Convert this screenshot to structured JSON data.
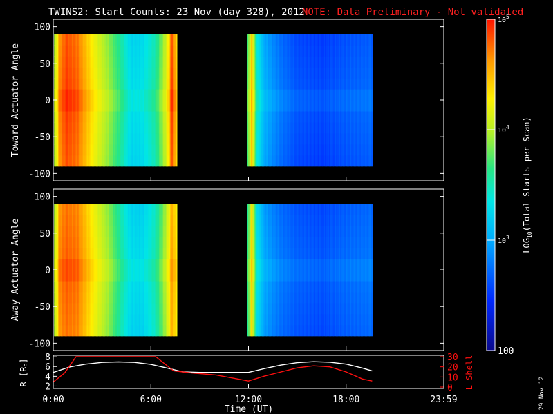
{
  "header": {
    "title": "TWINS2: Start Counts: 23 Nov (day 328), 2012",
    "note": "NOTE: Data Preliminary - Not validated",
    "note_color": "#ff2020"
  },
  "footer": {
    "date_stamp": "29 Nov 12"
  },
  "chart_data": [
    {
      "type": "heatmap",
      "title": "",
      "ylabel": "Toward Actuator Angle",
      "ylim": [
        -110,
        110
      ],
      "yticks": [
        "100",
        "50",
        "0",
        "-50",
        "-100"
      ],
      "ytick_values": [
        100,
        50,
        0,
        -50,
        -100
      ],
      "xlim": [
        0,
        24
      ],
      "data_blocks": [
        {
          "x_start": 0.05,
          "x_end": 7.6,
          "y_start": -90,
          "y_end": 90,
          "profile": [
            [
              0.05,
              3.9
            ],
            [
              0.4,
              4.7
            ],
            [
              0.8,
              4.9
            ],
            [
              1.5,
              4.8
            ],
            [
              2.5,
              4.3
            ],
            [
              3.5,
              3.9
            ],
            [
              4.2,
              3.6
            ],
            [
              4.8,
              3.3
            ],
            [
              5.5,
              3.35
            ],
            [
              6.3,
              3.6
            ],
            [
              7.0,
              4.2
            ],
            [
              7.3,
              4.9
            ],
            [
              7.6,
              4.4
            ]
          ]
        },
        {
          "x_start": 11.9,
          "x_end": 19.6,
          "y_start": -90,
          "y_end": 90,
          "profile": [
            [
              11.9,
              3.6
            ],
            [
              12.2,
              4.5
            ],
            [
              12.5,
              3.5
            ],
            [
              13.0,
              3.05
            ],
            [
              14.0,
              2.8
            ],
            [
              15.0,
              2.65
            ],
            [
              16.5,
              2.6
            ],
            [
              18.0,
              2.7
            ],
            [
              19.6,
              2.75
            ]
          ]
        }
      ]
    },
    {
      "type": "heatmap",
      "title": "",
      "ylabel": "Away Actuator Angle",
      "ylim": [
        -110,
        110
      ],
      "yticks": [
        "100",
        "50",
        "0",
        "-50",
        "-100"
      ],
      "ytick_values": [
        100,
        50,
        0,
        -50,
        -100
      ],
      "xlim": [
        0,
        24
      ],
      "data_blocks": [
        {
          "x_start": 0.05,
          "x_end": 7.6,
          "y_start": -90,
          "y_end": 90,
          "profile": [
            [
              0.05,
              3.9
            ],
            [
              0.4,
              4.7
            ],
            [
              0.8,
              4.8
            ],
            [
              1.5,
              4.75
            ],
            [
              2.5,
              4.3
            ],
            [
              3.5,
              3.9
            ],
            [
              4.2,
              3.55
            ],
            [
              4.8,
              3.3
            ],
            [
              5.5,
              3.3
            ],
            [
              6.3,
              3.55
            ],
            [
              7.0,
              4.1
            ],
            [
              7.3,
              4.6
            ],
            [
              7.6,
              4.3
            ]
          ]
        },
        {
          "x_start": 11.9,
          "x_end": 19.6,
          "y_start": -90,
          "y_end": 90,
          "profile": [
            [
              11.9,
              3.5
            ],
            [
              12.2,
              4.4
            ],
            [
              12.5,
              3.4
            ],
            [
              13.0,
              3.0
            ],
            [
              14.0,
              2.8
            ],
            [
              15.0,
              2.7
            ],
            [
              16.5,
              2.65
            ],
            [
              18.0,
              2.75
            ],
            [
              19.6,
              2.8
            ]
          ]
        }
      ]
    },
    {
      "type": "line",
      "title": "",
      "xlabel": "Time (UT)",
      "xlim": [
        0,
        24
      ],
      "xticks": [
        "0:00",
        "6:00",
        "12:00",
        "18:00",
        "23:59"
      ],
      "xtick_values": [
        0,
        6,
        12,
        18,
        24
      ],
      "ylabel_left": "R [R",
      "ylabel_left_sub": "E",
      "ylabel_left_end": "]",
      "ylim_left": [
        1.5,
        8.3
      ],
      "yticks_left": [
        "8",
        "6",
        "4",
        "2"
      ],
      "ytick_values_left": [
        8,
        6,
        4,
        2
      ],
      "ylabel_right": "L Shell",
      "ylim_right": [
        0,
        30
      ],
      "yticks_right": [
        "30",
        "20",
        "10",
        "0"
      ],
      "ytick_values_right": [
        30,
        20,
        10,
        0
      ],
      "axis_color_right": "#ff1010",
      "series": [
        {
          "axis": "left",
          "color": "#ffffff",
          "x": [
            0,
            1,
            2,
            3,
            4,
            5,
            6,
            7,
            8,
            9,
            10,
            11,
            12,
            13,
            14,
            15,
            16,
            17,
            18,
            19,
            19.6
          ],
          "y": [
            4.8,
            5.9,
            6.5,
            6.85,
            6.95,
            6.85,
            6.45,
            5.7,
            4.9,
            4.8,
            4.8,
            4.8,
            4.8,
            5.6,
            6.3,
            6.8,
            7.0,
            6.9,
            6.5,
            5.7,
            5.1
          ]
        },
        {
          "axis": "right",
          "color": "#ff1010",
          "x": [
            0,
            0.7,
            1.4,
            6.3,
            7.4,
            8.5,
            10,
            12,
            13,
            14,
            15,
            16,
            17,
            18,
            19,
            19.6
          ],
          "y": [
            5,
            14,
            30,
            30,
            16,
            14,
            12,
            6,
            11,
            15,
            19,
            21,
            20,
            15,
            8,
            6
          ]
        }
      ]
    },
    {
      "type": "heatmap",
      "title": "",
      "colorbar_label": "LOG",
      "colorbar_label_sub": "10",
      "colorbar_label_end": "(Total Starts per Scan)",
      "colorbar_range": [
        2,
        5
      ],
      "colorbar_tick_values": [
        2,
        3,
        4,
        5
      ],
      "colorbar_labels": [
        {
          "value": 5,
          "base": "10",
          "exp": "5"
        },
        {
          "value": 4,
          "base": "10",
          "exp": "4"
        },
        {
          "value": 3,
          "base": "10",
          "exp": "3"
        },
        {
          "value": 2,
          "base": "100",
          "exp": ""
        }
      ]
    }
  ]
}
